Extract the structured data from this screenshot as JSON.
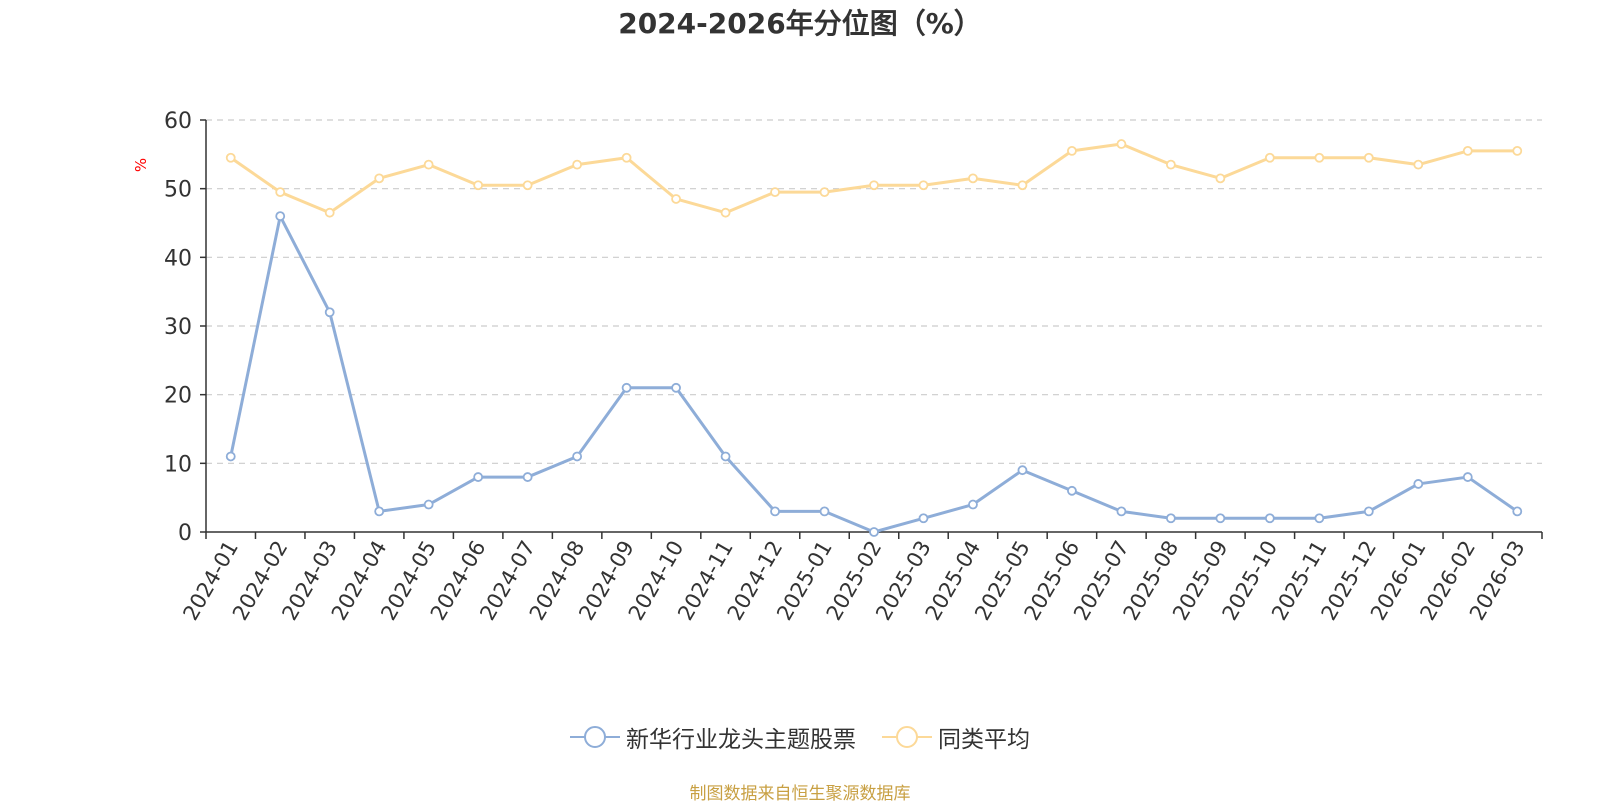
{
  "colors": {
    "series1": "#8eadd8",
    "series2": "#fcd998",
    "axis": "#333333",
    "grid": "#cccccc",
    "unit": "#ff0000",
    "source": "#c8a043"
  },
  "chart_data": {
    "type": "line",
    "title": "2024-2026年分位图（%）",
    "ylabel": "%",
    "xlabel": "",
    "ylim": [
      0,
      60
    ],
    "yticks": [
      0,
      10,
      20,
      30,
      40,
      50,
      60
    ],
    "grid": true,
    "legend_position": "bottom",
    "categories": [
      "2024-01",
      "2024-02",
      "2024-03",
      "2024-04",
      "2024-05",
      "2024-06",
      "2024-07",
      "2024-08",
      "2024-09",
      "2024-10",
      "2024-11",
      "2024-12",
      "2025-01",
      "2025-02",
      "2025-03",
      "2025-04",
      "2025-05",
      "2025-06",
      "2025-07",
      "2025-08",
      "2025-09",
      "2025-10",
      "2025-11",
      "2025-12",
      "2026-01",
      "2026-02",
      "2026-03"
    ],
    "series": [
      {
        "name": "新华行业龙头主题股票",
        "values": [
          11,
          46,
          32,
          3,
          4,
          8,
          8,
          11,
          21,
          21,
          11,
          3,
          3,
          0,
          2,
          4,
          9,
          6,
          3,
          2,
          2,
          2,
          2,
          3,
          7,
          8,
          3
        ]
      },
      {
        "name": "同类平均",
        "values": [
          54.5,
          49.5,
          46.5,
          51.5,
          53.5,
          50.5,
          50.5,
          53.5,
          54.5,
          48.5,
          46.5,
          49.5,
          49.5,
          50.5,
          50.5,
          51.5,
          50.5,
          55.5,
          56.5,
          53.5,
          51.5,
          54.5,
          54.5,
          54.5,
          53.5,
          55.5,
          55.5
        ]
      }
    ]
  },
  "source_note": "制图数据来自恒生聚源数据库"
}
